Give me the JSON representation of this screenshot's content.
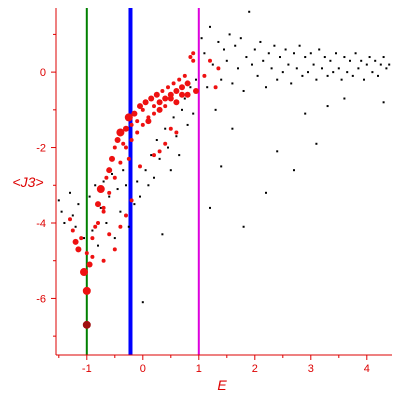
{
  "chart_data": {
    "type": "scatter",
    "title": "",
    "xlabel": "E",
    "ylabel": "<J3>",
    "xlim": [
      -1.55,
      4.45
    ],
    "ylim": [
      -7.5,
      1.7
    ],
    "x_ticks": [
      -1,
      0,
      1,
      2,
      3,
      4
    ],
    "x_tick_labels": [
      "-1",
      "0",
      "1",
      "2",
      "3",
      "4"
    ],
    "y_ticks": [
      0,
      -2,
      -4,
      -6
    ],
    "y_tick_labels": [
      "0",
      "-2",
      "-4",
      "-6"
    ],
    "grid": false,
    "legend": "none",
    "colors": {
      "axes": "#dd0000",
      "black_points": "#000000",
      "red_points": "#ee1111",
      "outlined_points": "#a01010",
      "line_green": "#008000",
      "line_blue": "#0000ff",
      "line_magenta": "#dd00dd"
    },
    "vertical_lines": [
      {
        "x": -1.0,
        "color": "#008000"
      },
      {
        "x": -0.22,
        "color": "#0000ff"
      },
      {
        "x": 1.0,
        "color": "#dd00dd"
      }
    ],
    "series": [
      {
        "marker": "small-black-dot",
        "points": [
          [
            -1.5,
            -3.4
          ],
          [
            -1.45,
            -3.7
          ],
          [
            -1.4,
            -4.0
          ],
          [
            -1.3,
            -3.2
          ],
          [
            -1.25,
            -3.8
          ],
          [
            -1.2,
            -4.1
          ],
          [
            -1.15,
            -3.5
          ],
          [
            -1.05,
            -4.4
          ],
          [
            -0.95,
            -3.3
          ],
          [
            -0.9,
            -4.2
          ],
          [
            -0.85,
            -3.0
          ],
          [
            -0.8,
            -4.6
          ],
          [
            -0.75,
            -3.6
          ],
          [
            -0.7,
            -2.9
          ],
          [
            -0.65,
            -4.0
          ],
          [
            -0.6,
            -3.3
          ],
          [
            -0.55,
            -2.7
          ],
          [
            -0.5,
            -4.4
          ],
          [
            -0.45,
            -3.1
          ],
          [
            -0.4,
            -3.7
          ],
          [
            -0.35,
            -2.6
          ],
          [
            -0.3,
            -3.0
          ],
          [
            -0.25,
            -4.1
          ],
          [
            -0.15,
            -3.5
          ],
          [
            -0.1,
            -2.9
          ],
          [
            -0.05,
            -3.3
          ],
          [
            0.0,
            -6.1
          ],
          [
            0.05,
            -2.6
          ],
          [
            0.1,
            -3.0
          ],
          [
            0.15,
            -2.2
          ],
          [
            0.2,
            -2.8
          ],
          [
            0.25,
            -1.8
          ],
          [
            0.3,
            -2.3
          ],
          [
            0.35,
            -4.3
          ],
          [
            0.4,
            -1.5
          ],
          [
            0.45,
            -2.0
          ],
          [
            0.5,
            -2.6
          ],
          [
            0.55,
            -1.2
          ],
          [
            0.6,
            -1.7
          ],
          [
            0.65,
            -2.2
          ],
          [
            0.7,
            -1.0
          ],
          [
            0.75,
            -0.7
          ],
          [
            0.8,
            -1.4
          ],
          [
            0.85,
            -0.4
          ],
          [
            0.9,
            -1.1
          ],
          [
            0.95,
            -0.2
          ],
          [
            1.05,
            0.9
          ],
          [
            1.1,
            0.5
          ],
          [
            1.15,
            -0.4
          ],
          [
            1.2,
            1.2
          ],
          [
            1.25,
            0.2
          ],
          [
            1.3,
            -1.0
          ],
          [
            1.35,
            0.8
          ],
          [
            1.4,
            -0.2
          ],
          [
            1.45,
            0.6
          ],
          [
            1.5,
            0.3
          ],
          [
            1.55,
            1.0
          ],
          [
            1.6,
            -0.3
          ],
          [
            1.65,
            0.7
          ],
          [
            1.7,
            0.1
          ],
          [
            1.75,
            0.9
          ],
          [
            1.8,
            -0.5
          ],
          [
            1.85,
            0.4
          ],
          [
            1.9,
            1.6
          ],
          [
            1.95,
            0.2
          ],
          [
            2.0,
            0.6
          ],
          [
            2.05,
            -0.1
          ],
          [
            2.1,
            0.8
          ],
          [
            2.15,
            0.3
          ],
          [
            2.2,
            -0.4
          ],
          [
            2.25,
            0.5
          ],
          [
            2.3,
            0.1
          ],
          [
            2.35,
            0.7
          ],
          [
            2.4,
            -0.2
          ],
          [
            2.45,
            0.4
          ],
          [
            2.5,
            0.0
          ],
          [
            2.55,
            0.6
          ],
          [
            2.6,
            0.2
          ],
          [
            2.65,
            -0.3
          ],
          [
            2.7,
            0.5
          ],
          [
            2.75,
            0.1
          ],
          [
            2.8,
            0.7
          ],
          [
            2.85,
            -0.1
          ],
          [
            2.9,
            0.4
          ],
          [
            2.95,
            0.0
          ],
          [
            3.0,
            0.5
          ],
          [
            3.05,
            0.2
          ],
          [
            3.1,
            -0.2
          ],
          [
            3.15,
            0.6
          ],
          [
            3.2,
            0.1
          ],
          [
            3.25,
            0.4
          ],
          [
            3.3,
            -0.1
          ],
          [
            3.35,
            0.3
          ],
          [
            3.4,
            0.0
          ],
          [
            3.45,
            0.5
          ],
          [
            3.5,
            0.1
          ],
          [
            3.55,
            -0.2
          ],
          [
            3.6,
            0.4
          ],
          [
            3.65,
            0.0
          ],
          [
            3.7,
            0.3
          ],
          [
            3.75,
            -0.1
          ],
          [
            3.8,
            0.5
          ],
          [
            3.85,
            0.1
          ],
          [
            3.9,
            0.3
          ],
          [
            3.95,
            -0.2
          ],
          [
            4.0,
            0.2
          ],
          [
            4.05,
            0.4
          ],
          [
            4.1,
            0.0
          ],
          [
            4.15,
            0.3
          ],
          [
            4.2,
            -0.1
          ],
          [
            4.25,
            0.2
          ],
          [
            4.3,
            0.4
          ],
          [
            4.35,
            0.1
          ],
          [
            4.4,
            0.2
          ],
          [
            1.2,
            -3.6
          ],
          [
            1.8,
            -4.1
          ],
          [
            2.4,
            -2.1
          ],
          [
            2.7,
            -2.6
          ],
          [
            3.1,
            -1.9
          ],
          [
            1.6,
            -1.5
          ],
          [
            2.2,
            -3.2
          ],
          [
            1.4,
            -2.5
          ],
          [
            3.3,
            -0.9
          ],
          [
            2.9,
            -1.1
          ],
          [
            3.6,
            -0.7
          ],
          [
            4.3,
            -0.8
          ]
        ]
      },
      {
        "marker": "red-circle",
        "points": [
          [
            -1.3,
            -3.9,
            2
          ],
          [
            -1.25,
            -4.2,
            2
          ],
          [
            -1.2,
            -4.5,
            3
          ],
          [
            -1.15,
            -4.7,
            3
          ],
          [
            -1.1,
            -4.4,
            2
          ],
          [
            -1.05,
            -5.3,
            4
          ],
          [
            -1.0,
            -5.8,
            4
          ],
          [
            -1.0,
            -6.7,
            4
          ],
          [
            -0.95,
            -5.1,
            3
          ],
          [
            -0.9,
            -4.9,
            2
          ],
          [
            -0.85,
            -4.1,
            2
          ],
          [
            -0.8,
            -3.5,
            3
          ],
          [
            -0.75,
            -3.1,
            4
          ],
          [
            -0.7,
            -3.7,
            2
          ],
          [
            -0.65,
            -2.8,
            2
          ],
          [
            -0.6,
            -2.6,
            3
          ],
          [
            -0.55,
            -2.3,
            3
          ],
          [
            -0.5,
            -2.0,
            2
          ],
          [
            -0.45,
            -1.8,
            3
          ],
          [
            -0.4,
            -1.6,
            4
          ],
          [
            -0.35,
            -1.9,
            2
          ],
          [
            -0.3,
            -1.5,
            3
          ],
          [
            -0.25,
            -1.2,
            4
          ],
          [
            -0.2,
            -1.4,
            2
          ],
          [
            -0.15,
            -1.1,
            3
          ],
          [
            -0.1,
            -1.3,
            2
          ],
          [
            -0.05,
            -0.9,
            3
          ],
          [
            0.0,
            -1.0,
            2
          ],
          [
            0.05,
            -0.8,
            3
          ],
          [
            0.1,
            -1.2,
            2
          ],
          [
            0.15,
            -0.7,
            3
          ],
          [
            0.2,
            -0.9,
            2
          ],
          [
            0.25,
            -0.6,
            3
          ],
          [
            0.3,
            -0.8,
            3
          ],
          [
            0.35,
            -0.5,
            2
          ],
          [
            0.4,
            -0.7,
            3
          ],
          [
            0.45,
            -0.4,
            2
          ],
          [
            0.5,
            -0.6,
            3
          ],
          [
            0.55,
            -0.3,
            2
          ],
          [
            0.6,
            -0.5,
            3
          ],
          [
            0.65,
            -0.2,
            2
          ],
          [
            0.7,
            -0.4,
            3
          ],
          [
            0.75,
            -0.1,
            2
          ],
          [
            0.8,
            -0.3,
            3
          ],
          [
            0.85,
            0.4,
            2
          ],
          [
            0.9,
            0.3,
            2
          ],
          [
            0.95,
            -0.5,
            3
          ],
          [
            0.8,
            -0.6,
            3
          ],
          [
            0.7,
            -0.6,
            3
          ],
          [
            0.6,
            -0.8,
            3
          ],
          [
            0.5,
            -0.7,
            3
          ],
          [
            0.4,
            -0.9,
            2
          ],
          [
            0.3,
            -1.0,
            3
          ],
          [
            0.2,
            -1.1,
            2
          ],
          [
            0.1,
            -1.3,
            3
          ],
          [
            0.0,
            -1.4,
            2
          ],
          [
            -0.1,
            -1.6,
            2
          ],
          [
            -0.2,
            -1.8,
            2
          ],
          [
            -0.3,
            -2.0,
            2
          ],
          [
            -0.4,
            -2.4,
            2
          ],
          [
            -0.5,
            -2.8,
            2
          ],
          [
            -0.6,
            -3.2,
            2
          ],
          [
            -0.7,
            -3.6,
            2
          ],
          [
            -0.8,
            -4.0,
            2
          ],
          [
            -0.9,
            -4.4,
            2
          ],
          [
            -1.0,
            -4.8,
            2
          ],
          [
            -0.5,
            -4.7,
            2
          ],
          [
            -0.6,
            -4.3,
            2
          ],
          [
            -0.7,
            -5.0,
            2
          ],
          [
            -0.4,
            -4.1,
            2
          ],
          [
            -0.3,
            -3.8,
            2
          ],
          [
            -0.2,
            -3.4,
            2
          ],
          [
            0.2,
            -2.2,
            2
          ],
          [
            0.3,
            -2.1,
            2
          ],
          [
            0.4,
            -1.9,
            2
          ],
          [
            0.5,
            -1.5,
            2
          ],
          [
            0.6,
            -1.6,
            2
          ],
          [
            1.1,
            -0.1,
            2
          ],
          [
            1.2,
            0.3,
            2
          ],
          [
            1.3,
            -0.4,
            2
          ],
          [
            1.35,
            0.1,
            2
          ],
          [
            0.9,
            0.5,
            2
          ],
          [
            -0.05,
            -2.5,
            2
          ],
          [
            -0.25,
            -2.3,
            2
          ]
        ]
      }
    ]
  }
}
